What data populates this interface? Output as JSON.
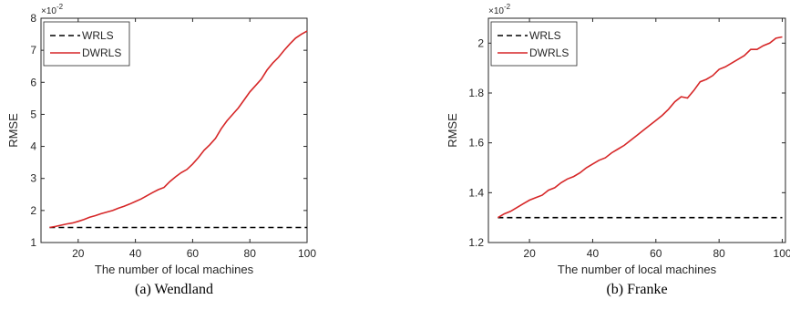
{
  "chart_data": [
    {
      "type": "line",
      "caption": "(a)  Wendland",
      "xlabel": "The number of local machines",
      "ylabel": "RMSE",
      "y_exponent_label": "×10",
      "y_exponent": "-2",
      "xlim": [
        7,
        100
      ],
      "ylim": [
        1,
        8
      ],
      "xticks": [
        20,
        40,
        60,
        80,
        100
      ],
      "yticks": [
        1,
        2,
        3,
        4,
        5,
        6,
        7,
        8
      ],
      "legend_position": "top-left",
      "grid": false,
      "x": [
        10,
        12,
        14,
        16,
        18,
        20,
        22,
        24,
        26,
        28,
        30,
        32,
        34,
        36,
        38,
        40,
        42,
        44,
        46,
        48,
        50,
        52,
        54,
        56,
        58,
        60,
        62,
        64,
        66,
        68,
        70,
        72,
        74,
        76,
        78,
        80,
        82,
        84,
        86,
        88,
        90,
        92,
        94,
        96,
        98,
        100
      ],
      "series": [
        {
          "name": "WRLS",
          "color": "#000000",
          "style": "dashed",
          "values": [
            1.47,
            1.47,
            1.47,
            1.47,
            1.47,
            1.47,
            1.47,
            1.47,
            1.47,
            1.47,
            1.47,
            1.47,
            1.47,
            1.47,
            1.47,
            1.47,
            1.47,
            1.47,
            1.47,
            1.47,
            1.47,
            1.47,
            1.47,
            1.47,
            1.47,
            1.47,
            1.47,
            1.47,
            1.47,
            1.47,
            1.47,
            1.47,
            1.47,
            1.47,
            1.47,
            1.47,
            1.47,
            1.47,
            1.47,
            1.47,
            1.47,
            1.47,
            1.47,
            1.47,
            1.47,
            1.47
          ]
        },
        {
          "name": "DWRLS",
          "color": "#d62728",
          "style": "solid",
          "values": [
            1.47,
            1.5,
            1.54,
            1.58,
            1.61,
            1.66,
            1.72,
            1.79,
            1.84,
            1.9,
            1.95,
            2.0,
            2.07,
            2.13,
            2.2,
            2.28,
            2.36,
            2.46,
            2.56,
            2.65,
            2.72,
            2.9,
            3.05,
            3.18,
            3.28,
            3.45,
            3.65,
            3.88,
            4.05,
            4.25,
            4.55,
            4.8,
            5.0,
            5.2,
            5.45,
            5.7,
            5.9,
            6.1,
            6.38,
            6.6,
            6.78,
            7.0,
            7.2,
            7.38,
            7.5,
            7.6
          ]
        }
      ]
    },
    {
      "type": "line",
      "caption": "(b)  Franke",
      "xlabel": "The number of local machines",
      "ylabel": "RMSE",
      "y_exponent_label": "×10",
      "y_exponent": "-2",
      "xlim": [
        7,
        101
      ],
      "ylim": [
        1.2,
        2.1
      ],
      "xticks": [
        20,
        40,
        60,
        80,
        100
      ],
      "yticks": [
        1.2,
        1.4,
        1.6,
        1.8,
        2
      ],
      "ytick_labels": [
        "1.2",
        "1.4",
        "1.6",
        "1.8",
        "2"
      ],
      "legend_position": "top-left",
      "grid": false,
      "x": [
        10,
        12,
        14,
        16,
        18,
        20,
        22,
        24,
        26,
        28,
        30,
        32,
        34,
        36,
        38,
        40,
        42,
        44,
        46,
        48,
        50,
        52,
        54,
        56,
        58,
        60,
        62,
        64,
        66,
        68,
        70,
        72,
        74,
        76,
        78,
        80,
        82,
        84,
        86,
        88,
        90,
        92,
        94,
        96,
        98,
        100
      ],
      "series": [
        {
          "name": "WRLS",
          "color": "#000000",
          "style": "dashed",
          "values": [
            1.3,
            1.3,
            1.3,
            1.3,
            1.3,
            1.3,
            1.3,
            1.3,
            1.3,
            1.3,
            1.3,
            1.3,
            1.3,
            1.3,
            1.3,
            1.3,
            1.3,
            1.3,
            1.3,
            1.3,
            1.3,
            1.3,
            1.3,
            1.3,
            1.3,
            1.3,
            1.3,
            1.3,
            1.3,
            1.3,
            1.3,
            1.3,
            1.3,
            1.3,
            1.3,
            1.3,
            1.3,
            1.3,
            1.3,
            1.3,
            1.3,
            1.3,
            1.3,
            1.3,
            1.3,
            1.3
          ]
        },
        {
          "name": "DWRLS",
          "color": "#d62728",
          "style": "solid",
          "values": [
            1.3,
            1.315,
            1.325,
            1.34,
            1.355,
            1.37,
            1.38,
            1.39,
            1.41,
            1.42,
            1.44,
            1.455,
            1.465,
            1.48,
            1.5,
            1.515,
            1.53,
            1.54,
            1.56,
            1.575,
            1.59,
            1.61,
            1.63,
            1.65,
            1.67,
            1.69,
            1.71,
            1.735,
            1.765,
            1.785,
            1.78,
            1.81,
            1.845,
            1.855,
            1.87,
            1.895,
            1.905,
            1.92,
            1.935,
            1.95,
            1.975,
            1.975,
            1.99,
            2.0,
            2.02,
            2.025
          ]
        }
      ]
    }
  ]
}
